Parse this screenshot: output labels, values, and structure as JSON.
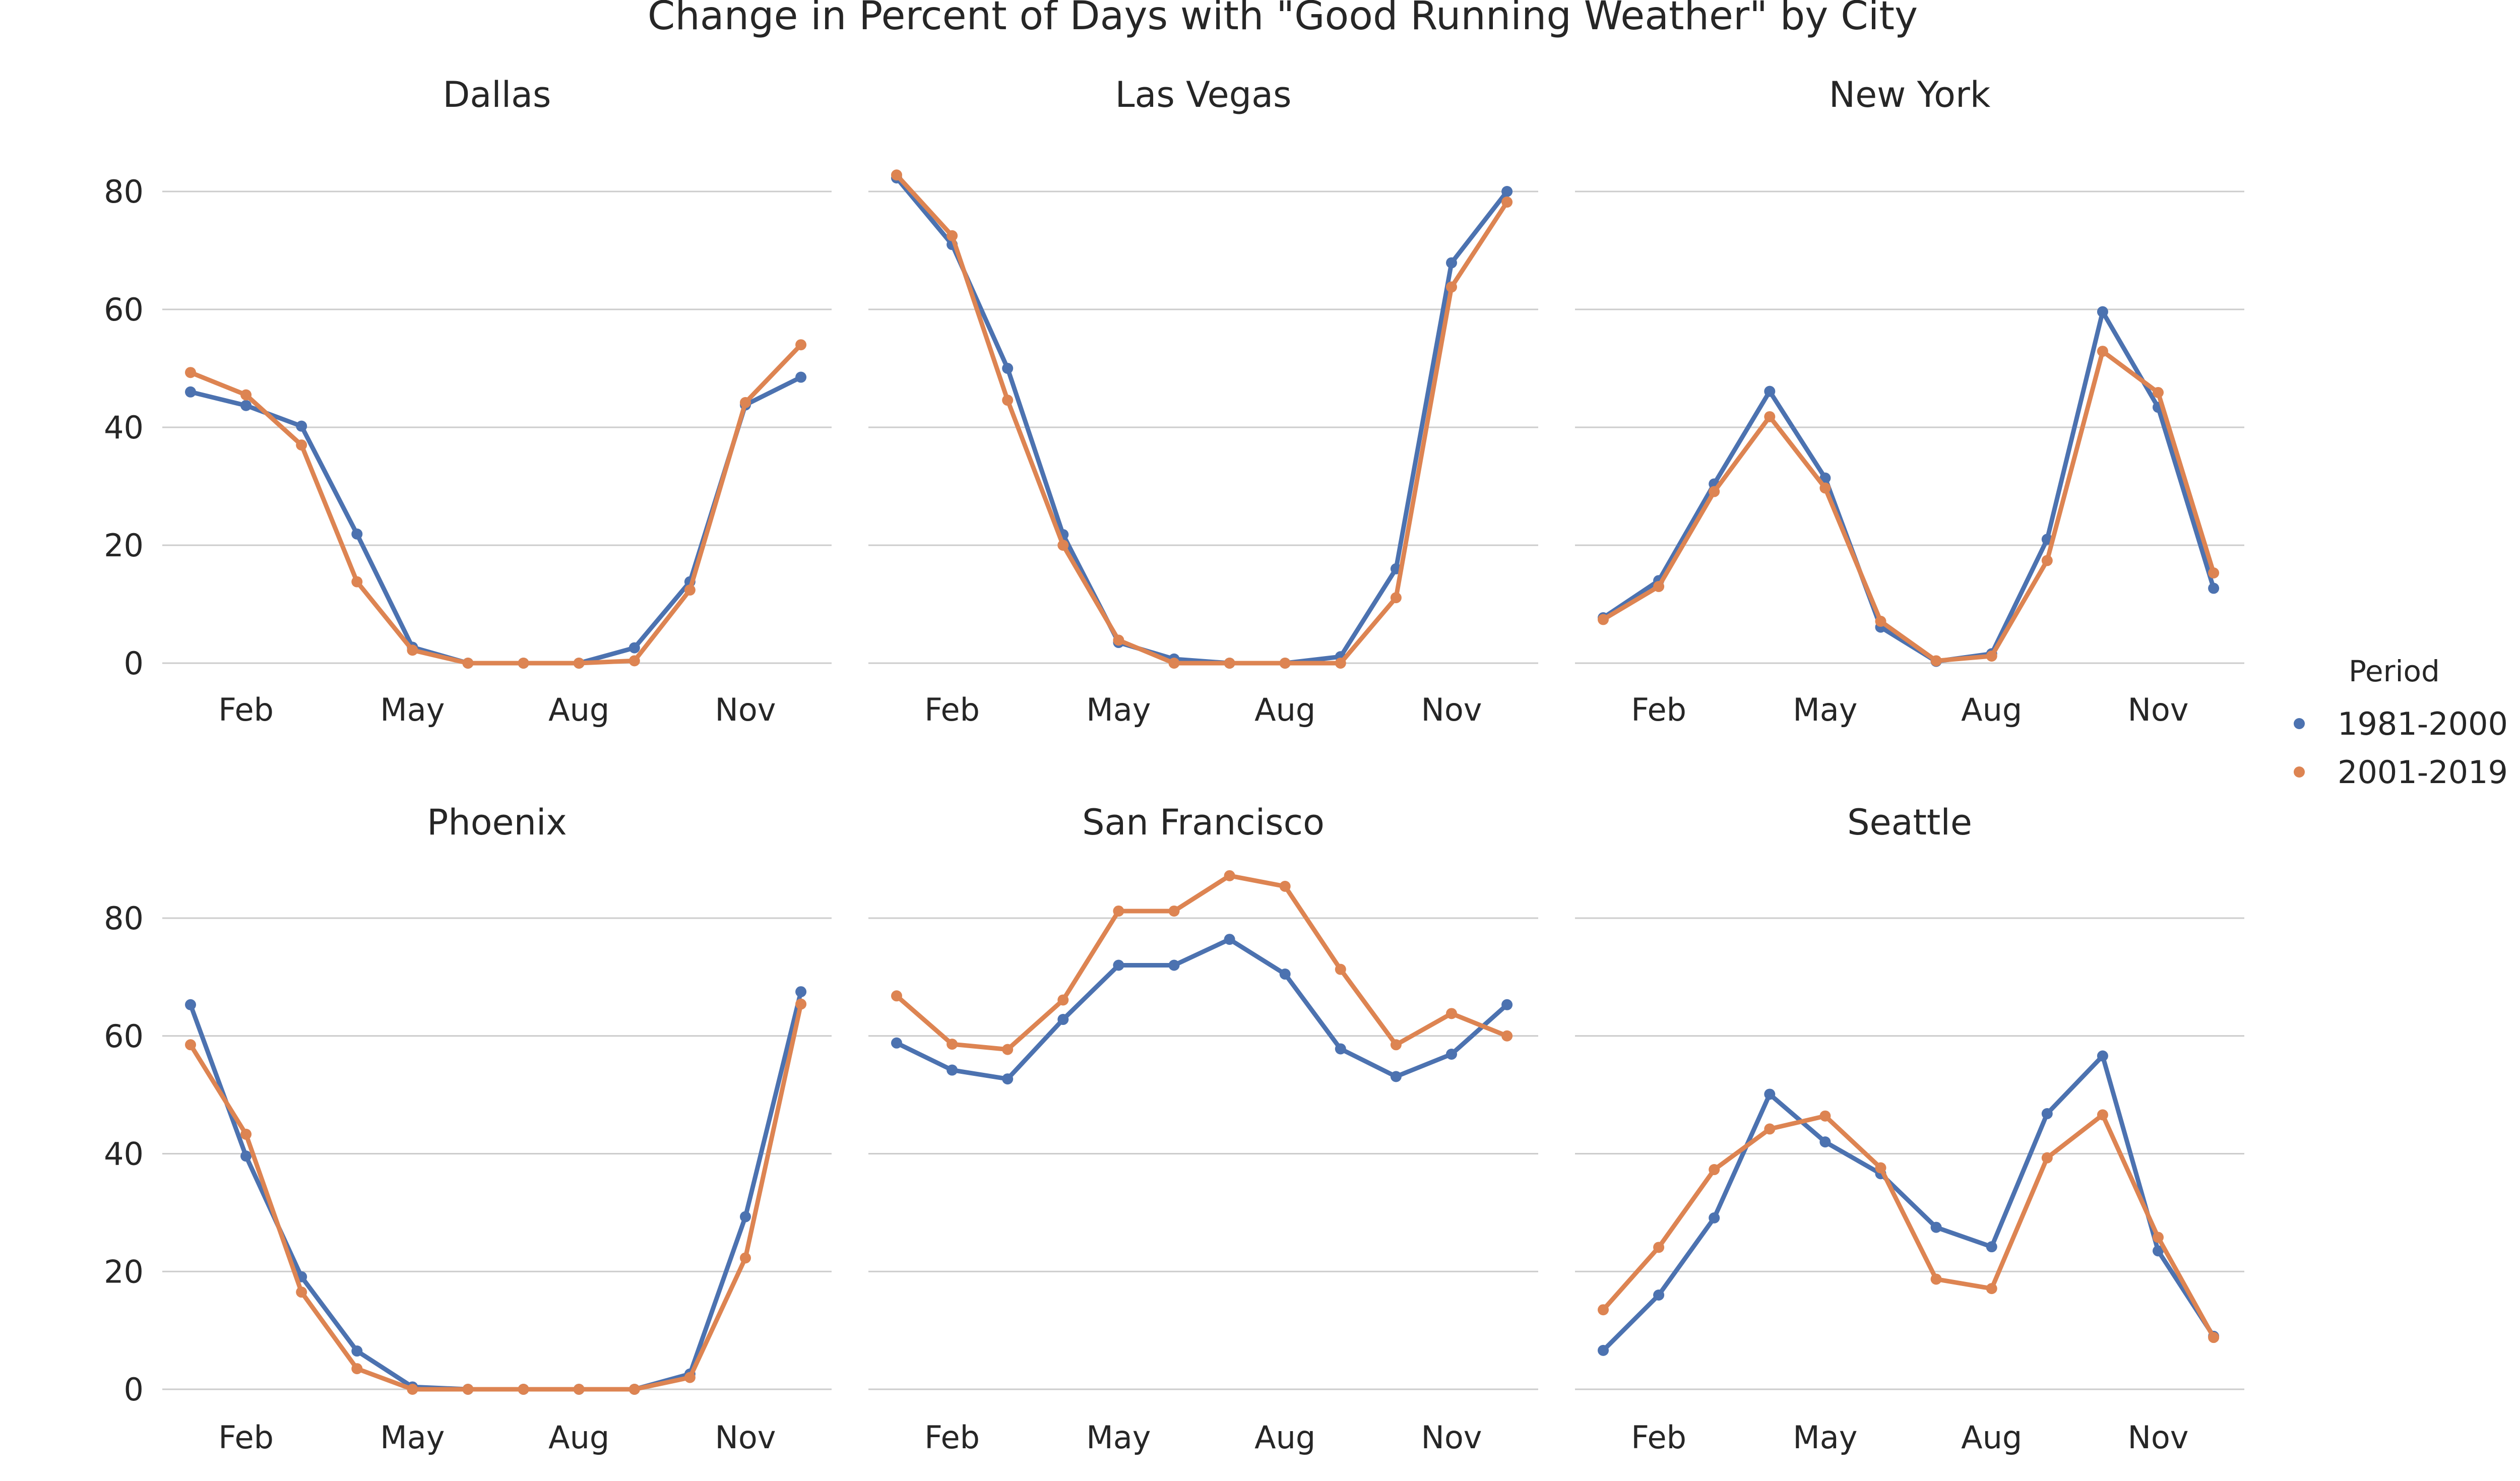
{
  "chart_data": {
    "type": "line",
    "title": "Change in Percent of Days with \"Good Running Weather\" by City",
    "xlabel": "",
    "ylabel": "",
    "x_months": [
      1,
      2,
      3,
      4,
      5,
      6,
      7,
      8,
      9,
      10,
      11,
      12
    ],
    "x_tick_positions": [
      2,
      5,
      8,
      11
    ],
    "x_tick_labels": [
      "Feb",
      "May",
      "Aug",
      "Nov"
    ],
    "ylim": [
      0,
      88
    ],
    "y_ticks": [
      0,
      20,
      40,
      60,
      80
    ],
    "grid": "horizontal",
    "legend": {
      "title": "Period",
      "placement": "right",
      "entries": [
        "1981-2000",
        "2001-2019"
      ]
    },
    "colors": {
      "1981-2000": "#4c72b0",
      "2001-2019": "#dd8452"
    },
    "panels": [
      {
        "name": "Dallas",
        "series": [
          {
            "name": "1981-2000",
            "values": [
              46,
              43.7,
              40.2,
              21.9,
              2.7,
              0,
              0,
              0,
              2.6,
              13.8,
              43.8,
              48.5
            ]
          },
          {
            "name": "2001-2019",
            "values": [
              49.3,
              45.5,
              37,
              13.8,
              2.2,
              0,
              0,
              0,
              0.4,
              12.4,
              44.2,
              54
            ]
          }
        ]
      },
      {
        "name": "Las Vegas",
        "series": [
          {
            "name": "1981-2000",
            "values": [
              82.3,
              71,
              50,
              21.8,
              3.5,
              0.7,
              0,
              0,
              1.1,
              16,
              67.9,
              80
            ]
          },
          {
            "name": "2001-2019",
            "values": [
              82.8,
              72.5,
              44.6,
              20,
              3.9,
              0,
              0,
              0,
              0,
              11.1,
              63.8,
              78.2
            ]
          }
        ]
      },
      {
        "name": "New York",
        "series": [
          {
            "name": "1981-2000",
            "values": [
              7.7,
              14,
              30.4,
              46.1,
              31.4,
              6.1,
              0.3,
              1.6,
              21,
              59.6,
              43.4,
              12.7
            ]
          },
          {
            "name": "2001-2019",
            "values": [
              7.4,
              13,
              29.1,
              41.8,
              29.7,
              7.1,
              0.4,
              1.2,
              17.4,
              52.9,
              45.9,
              15.3
            ]
          }
        ]
      },
      {
        "name": "Phoenix",
        "series": [
          {
            "name": "1981-2000",
            "values": [
              65.3,
              39.6,
              19.1,
              6.5,
              0.4,
              0,
              0,
              0,
              0,
              2.6,
              29.3,
              67.5
            ]
          },
          {
            "name": "2001-2019",
            "values": [
              58.5,
              43.3,
              16.5,
              3.5,
              0,
              0,
              0,
              0,
              0,
              2,
              22.3,
              65.4
            ]
          }
        ]
      },
      {
        "name": "San Francisco",
        "series": [
          {
            "name": "1981-2000",
            "values": [
              58.8,
              54.2,
              52.7,
              62.8,
              72,
              72,
              76.4,
              70.5,
              57.8,
              53.1,
              56.9,
              65.3
            ]
          },
          {
            "name": "2001-2019",
            "values": [
              66.8,
              58.6,
              57.7,
              66.1,
              81.2,
              81.2,
              87.2,
              85.4,
              71.3,
              58.5,
              63.8,
              60
            ]
          }
        ]
      },
      {
        "name": "Seattle",
        "series": [
          {
            "name": "1981-2000",
            "values": [
              6.6,
              16,
              29.1,
              50.1,
              42,
              36.6,
              27.5,
              24.2,
              46.8,
              56.6,
              23.5,
              9
            ]
          },
          {
            "name": "2001-2019",
            "values": [
              13.5,
              24.1,
              37.3,
              44.2,
              46.4,
              37.6,
              18.7,
              17.1,
              39.3,
              46.6,
              25.8,
              8.8
            ]
          }
        ]
      }
    ]
  }
}
